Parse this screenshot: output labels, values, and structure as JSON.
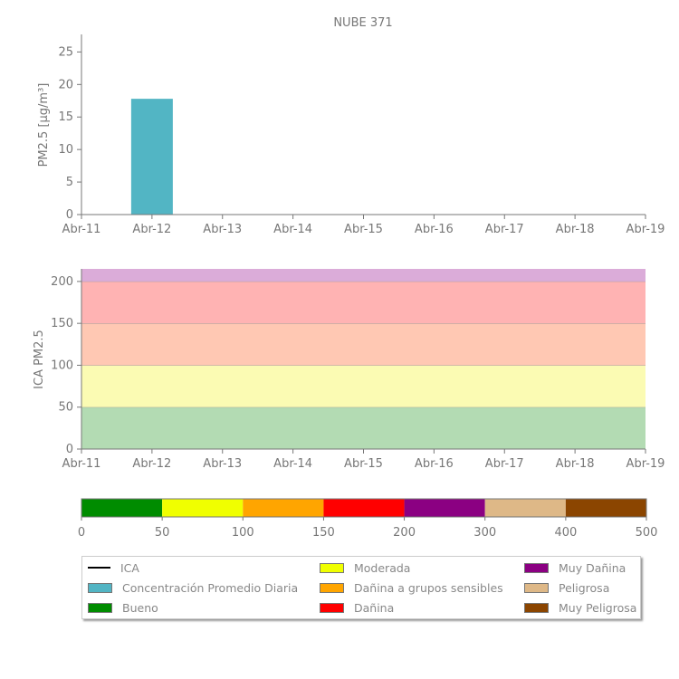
{
  "title": "NUBE 371",
  "chart_data": [
    {
      "type": "bar",
      "title": "NUBE 371",
      "ylabel": "PM2.5 [µg/m³]",
      "categories": [
        "Abr-11",
        "Abr-12",
        "Abr-13",
        "Abr-14",
        "Abr-15",
        "Abr-16",
        "Abr-17",
        "Abr-18",
        "Abr-19"
      ],
      "bars": [
        {
          "category": "Abr-12",
          "value": 17.8
        }
      ],
      "yticks": [
        0,
        5,
        10,
        15,
        20,
        25
      ],
      "ylim": [
        0,
        27.7
      ],
      "color": "#52b5c4"
    },
    {
      "type": "area",
      "ylabel": "ICA PM2.5",
      "categories": [
        "Abr-11",
        "Abr-12",
        "Abr-13",
        "Abr-14",
        "Abr-15",
        "Abr-16",
        "Abr-17",
        "Abr-18",
        "Abr-19"
      ],
      "yticks": [
        0,
        50,
        100,
        150,
        200
      ],
      "ylim": [
        0,
        215
      ],
      "bands": [
        {
          "from": 0,
          "to": 50,
          "color": "#b3dbb3"
        },
        {
          "from": 50,
          "to": 100,
          "color": "#fbfbb3"
        },
        {
          "from": 100,
          "to": 150,
          "color": "#ffc8b3"
        },
        {
          "from": 150,
          "to": 200,
          "color": "#ffb3b3"
        },
        {
          "from": 200,
          "to": 215,
          "color": "#dbacd9"
        }
      ]
    },
    {
      "type": "bar",
      "name": "color-scale",
      "ticks": [
        "0",
        "50",
        "100",
        "150",
        "200",
        "300",
        "400",
        "500"
      ],
      "segments": [
        {
          "from": 0,
          "to": 50,
          "color": "#008c00"
        },
        {
          "from": 50,
          "to": 100,
          "color": "#f0ff00"
        },
        {
          "from": 100,
          "to": 150,
          "color": "#ffa500"
        },
        {
          "from": 150,
          "to": 200,
          "color": "#ff0000"
        },
        {
          "from": 200,
          "to": 300,
          "color": "#8b0082"
        },
        {
          "from": 300,
          "to": 400,
          "color": "#deb887"
        },
        {
          "from": 400,
          "to": 500,
          "color": "#8b4500"
        }
      ]
    }
  ],
  "legend": [
    {
      "label": "ICA",
      "type": "line",
      "color": "#000000"
    },
    {
      "label": "Concentración Promedio Diaria",
      "color": "#52b5c4"
    },
    {
      "label": "Bueno",
      "color": "#008c00"
    },
    {
      "label": "Moderada",
      "color": "#f0ff00"
    },
    {
      "label": "Dañina a grupos sensibles",
      "color": "#ffa500"
    },
    {
      "label": "Dañina",
      "color": "#ff0000"
    },
    {
      "label": "Muy Dañina",
      "color": "#8b0082"
    },
    {
      "label": "Peligrosa",
      "color": "#deb887"
    },
    {
      "label": "Muy Peligrosa",
      "color": "#8b4500"
    }
  ]
}
